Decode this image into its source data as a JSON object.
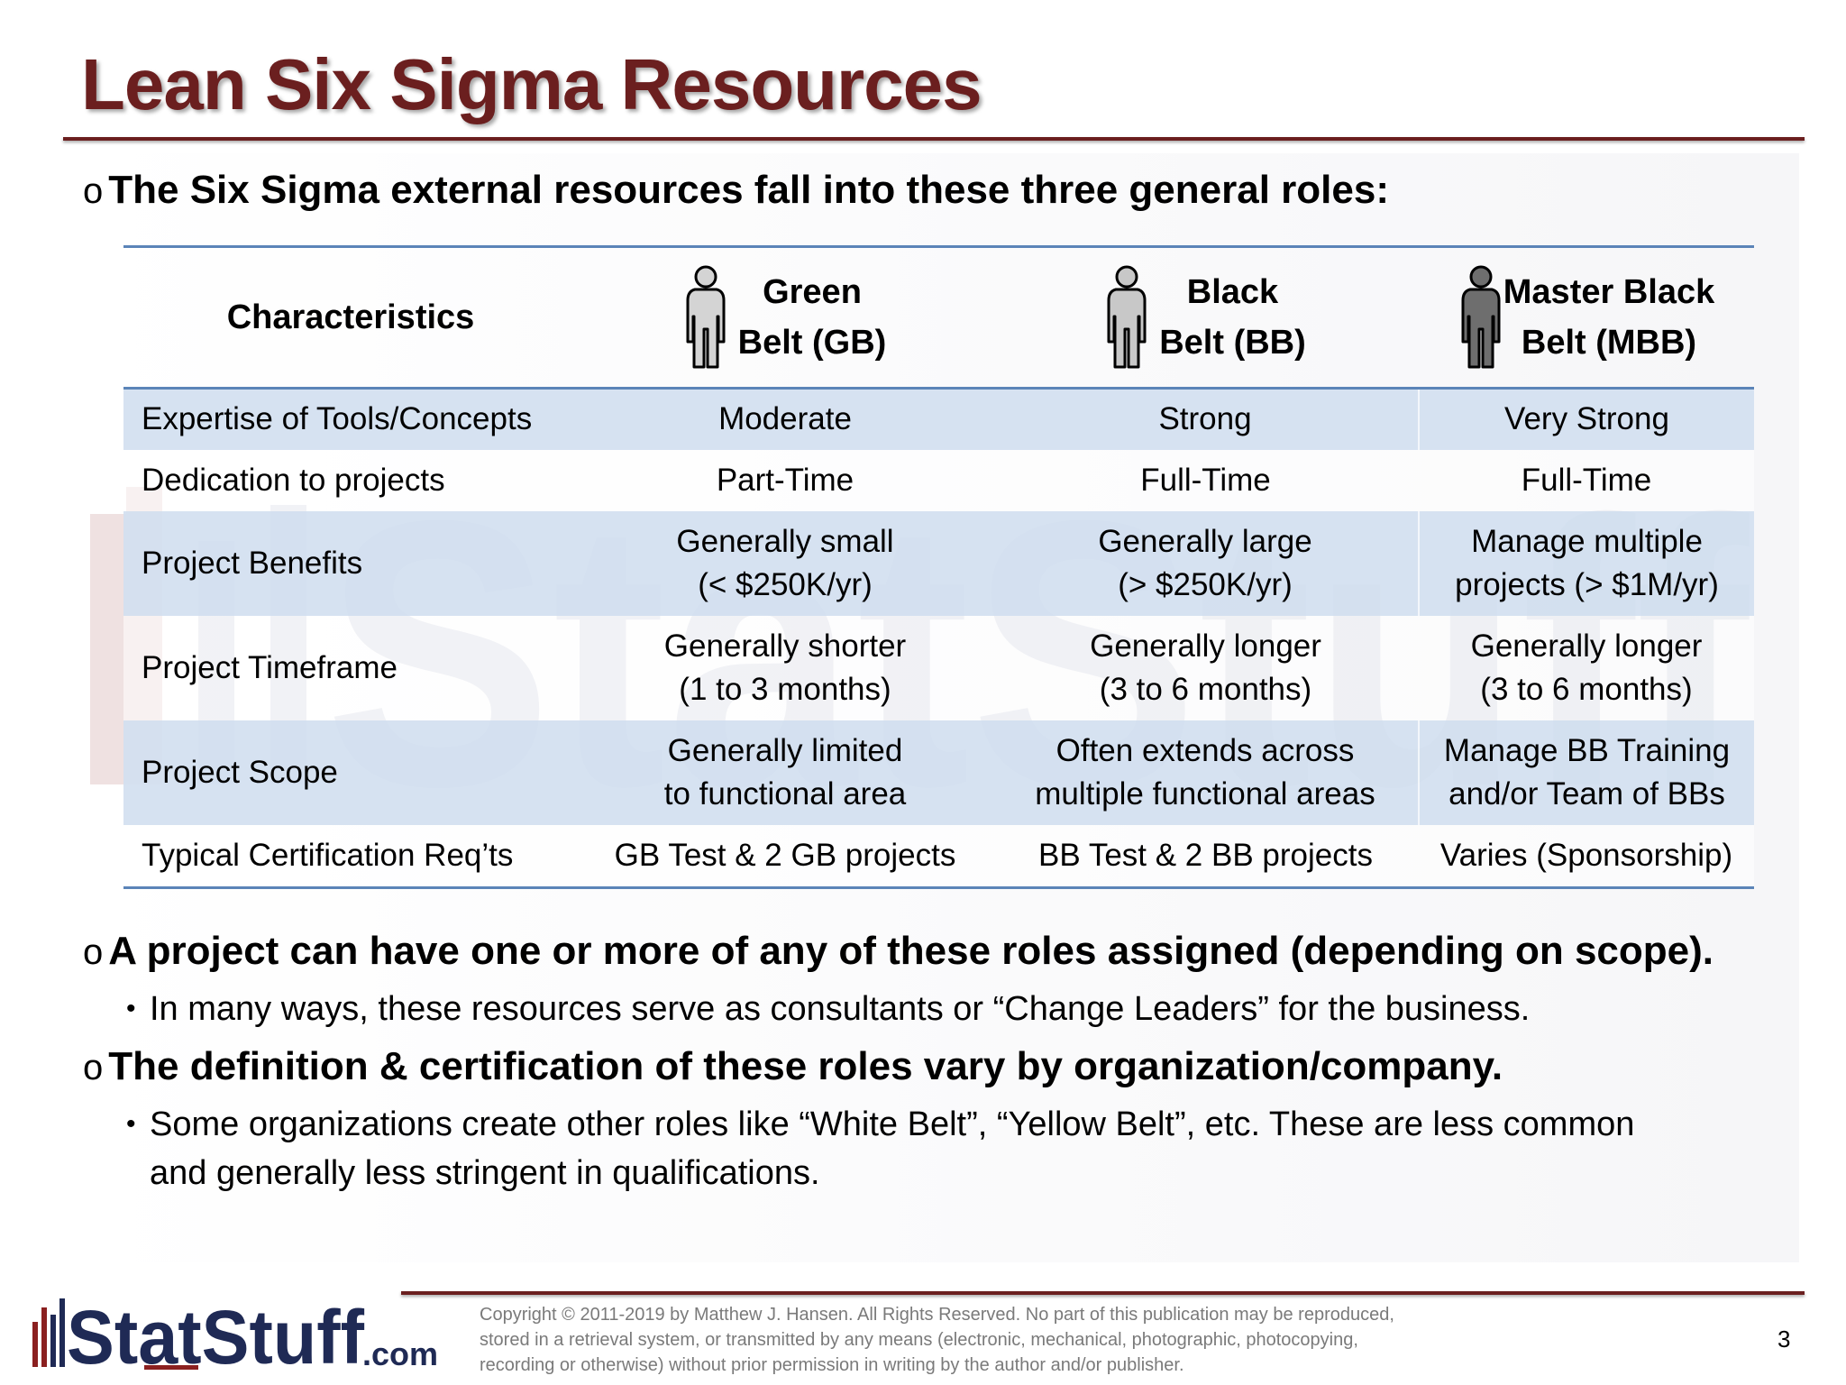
{
  "slide": {
    "title": "Lean Six Sigma Resources",
    "page_number": "3"
  },
  "intro": {
    "marker": "o",
    "text": "The Six Sigma external resources fall into these three general roles:"
  },
  "table": {
    "headers": {
      "characteristics": "Characteristics",
      "gb": [
        "Green",
        "Belt (GB)"
      ],
      "bb": [
        "Black",
        "Belt (BB)"
      ],
      "mbb": [
        "Master Black",
        "Belt (MBB)"
      ]
    },
    "rows": [
      {
        "label": "Expertise of Tools/Concepts",
        "gb": [
          "Moderate"
        ],
        "bb": [
          "Strong"
        ],
        "mbb": [
          "Very Strong"
        ]
      },
      {
        "label": "Dedication to projects",
        "gb": [
          "Part-Time"
        ],
        "bb": [
          "Full-Time"
        ],
        "mbb": [
          "Full-Time"
        ]
      },
      {
        "label": "Project Benefits",
        "gb": [
          "Generally small",
          "(< $250K/yr)"
        ],
        "bb": [
          "Generally large",
          "(> $250K/yr)"
        ],
        "mbb": [
          "Manage multiple",
          "projects (> $1M/yr)"
        ]
      },
      {
        "label": "Project Timeframe",
        "gb": [
          "Generally shorter",
          "(1 to 3 months)"
        ],
        "bb": [
          "Generally longer",
          "(3 to 6 months)"
        ],
        "mbb": [
          "Generally longer",
          "(3 to 6 months)"
        ]
      },
      {
        "label": "Project Scope",
        "gb": [
          "Generally limited",
          "to functional area"
        ],
        "bb": [
          "Often extends across",
          "multiple functional areas"
        ],
        "mbb": [
          "Manage BB Training",
          "and/or Team of BBs"
        ]
      },
      {
        "label": "Typical Certification Req’ts",
        "gb": [
          "GB Test & 2 GB projects"
        ],
        "bb": [
          "BB Test & 2 BB projects"
        ],
        "mbb": [
          "Varies (Sponsorship)"
        ]
      }
    ]
  },
  "bullets": [
    {
      "marker": "o",
      "text": "A project can have one or more of any of these roles assigned (depending on scope).",
      "sub": {
        "marker": "•",
        "text": "In many ways, these resources serve as consultants or “Change Leaders” for the business."
      }
    },
    {
      "marker": "o",
      "text": "The definition & certification of these roles vary by organization/company.",
      "sub": {
        "marker": "•",
        "text": "Some organizations create other roles like “White Belt”, “Yellow Belt”, etc.  These are less common and generally less stringent in qualifications."
      }
    }
  ],
  "footer": {
    "logo_text": "StatStuff.com",
    "copyright": "Copyright © 2011-2019 by Matthew  J. Hansen.  All Rights Reserved.  No part of this publication may be reproduced, stored in a retrieval system, or transmitted by any means  (electronic, mechanical, photographic, photocopying, recording or otherwise) without prior permission in writing by the author and/or publisher."
  },
  "colors": {
    "title": "#6b1f1f",
    "rule": "#6b1f1f",
    "table_border": "#5b84b8",
    "row_shade": "#d3dff0",
    "belt_green_figure": "#d4d4d4",
    "belt_black_figure": "#c8c8c8",
    "belt_master_figure": "#6e6e6e"
  },
  "icons": [
    "person-icon-green-belt",
    "person-icon-black-belt",
    "person-icon-master-black-belt"
  ]
}
